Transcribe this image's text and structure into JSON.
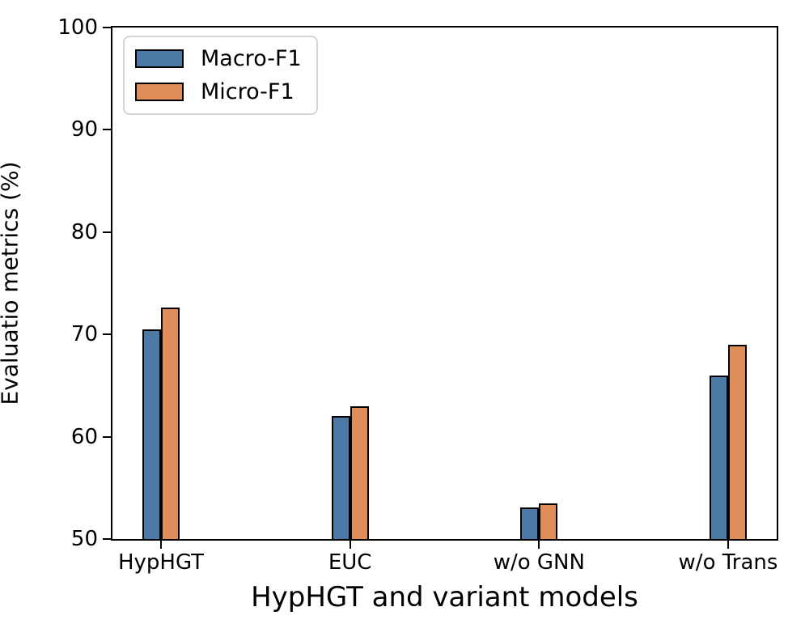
{
  "chart_data": {
    "type": "bar",
    "categories": [
      "HypHGT",
      "EUC",
      "w/o GNN",
      "w/o Trans"
    ],
    "series": [
      {
        "name": "Macro-F1",
        "color": "#4D79A7",
        "values": [
          70.5,
          62.0,
          53.1,
          66.0
        ]
      },
      {
        "name": "Micro-F1",
        "color": "#E08E59",
        "values": [
          72.6,
          63.0,
          53.5,
          69.0
        ]
      }
    ],
    "title": "",
    "xlabel": "HypHGT and variant models",
    "ylabel": "Evaluatio metrics (%)",
    "ylim": [
      50,
      100
    ],
    "yticks": [
      "50",
      "60",
      "70",
      "80",
      "90",
      "100"
    ],
    "legend_position": "upper-left",
    "grid": false,
    "bar_edge_color": "#000000",
    "axis_color": "#000000",
    "background_color": "#ffffff"
  }
}
